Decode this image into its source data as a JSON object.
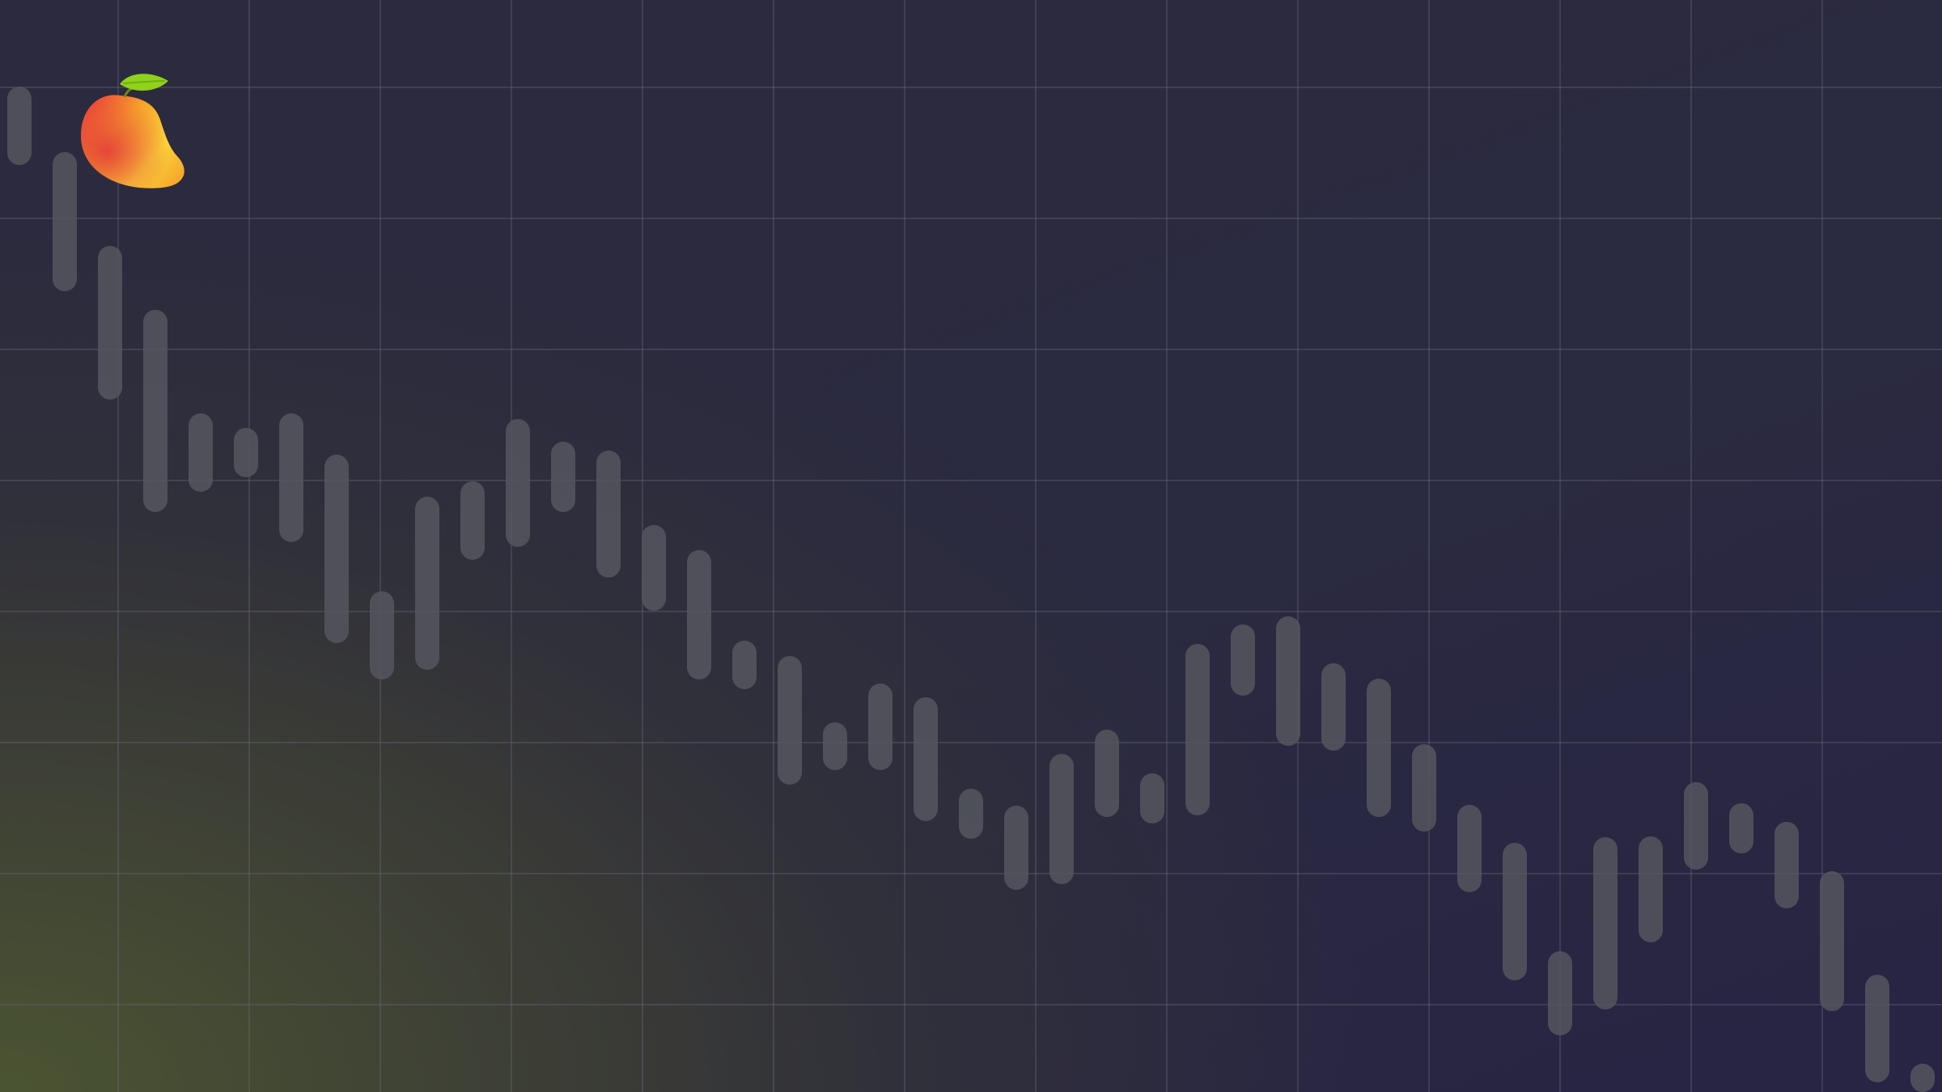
{
  "scene": {
    "description_free": true,
    "colors": {
      "grid_line": "#6a6a7e",
      "candle": "#55565e",
      "bg_top_right": "#282444",
      "bg_bottom_left": "#4b5432"
    }
  },
  "logo": {
    "icon": "mango-logo-icon",
    "colors": {
      "leaf": "#8fd11b",
      "fruit_light": "#fbd43a",
      "fruit_mid": "#f6a32b",
      "fruit_dark": "#ec3b3b"
    }
  },
  "chart_data": {
    "type": "candlestick-decoration",
    "ranges": [
      [
        107,
        204
      ],
      [
        188,
        360
      ],
      [
        304,
        494
      ],
      [
        383,
        633
      ],
      [
        511,
        608
      ],
      [
        529,
        590
      ],
      [
        511,
        670
      ],
      [
        562,
        795
      ],
      [
        731,
        840
      ],
      [
        614,
        828
      ],
      [
        595,
        692
      ],
      [
        518,
        676
      ],
      [
        546,
        633
      ],
      [
        557,
        714
      ],
      [
        649,
        755
      ],
      [
        680,
        840
      ],
      [
        792,
        852
      ],
      [
        811,
        970
      ],
      [
        893,
        952
      ],
      [
        845,
        952
      ],
      [
        862,
        1015
      ],
      [
        975,
        1037
      ],
      [
        996,
        1100
      ],
      [
        932,
        1093
      ],
      [
        902,
        1010
      ],
      [
        956,
        1018
      ],
      [
        796,
        1008
      ],
      [
        772,
        860
      ],
      [
        762,
        922
      ],
      [
        820,
        928
      ],
      [
        839,
        1010
      ],
      [
        920,
        1028
      ],
      [
        995,
        1103
      ],
      [
        1042,
        1212
      ],
      [
        1176,
        1280
      ],
      [
        1035,
        1248
      ],
      [
        1034,
        1165
      ],
      [
        967,
        1075
      ],
      [
        993,
        1055
      ],
      [
        1016,
        1123
      ],
      [
        1077,
        1250
      ],
      [
        1205,
        1338
      ],
      [
        1315,
        1350
      ]
    ]
  }
}
